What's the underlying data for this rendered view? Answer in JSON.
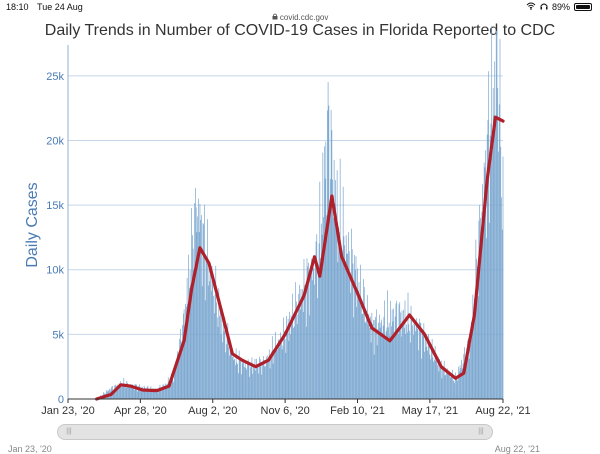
{
  "status_bar": {
    "time": "18:10",
    "date": "Tue 24 Aug",
    "battery": "89%",
    "battery_level": 0.89
  },
  "browser": {
    "url": "covid.cdc.gov"
  },
  "chart_data": {
    "type": "bar",
    "title": "Daily Trends in Number of COVID-19 Cases in Florida Reported to CDC",
    "ylabel": "Daily Cases",
    "xlabel": "",
    "x_range": [
      "2020-01-23",
      "2021-08-22"
    ],
    "ylim": [
      0,
      27000
    ],
    "y_ticks": [
      0,
      5000,
      10000,
      15000,
      20000,
      25000
    ],
    "y_tick_labels": [
      "0",
      "5k",
      "10k",
      "15k",
      "20k",
      "25k"
    ],
    "x_ticks": [
      "2020-01-23",
      "2020-04-28",
      "2020-08-02",
      "2020-11-06",
      "2021-02-10",
      "2021-05-17",
      "2021-08-22"
    ],
    "x_tick_labels": [
      "Jan 23, '20",
      "Apr 28, '20",
      "Aug 2, '20",
      "Nov 6, '20",
      "Feb 10, '21",
      "May 17, '21",
      "Aug 22, '21"
    ],
    "grid": true,
    "series": [
      {
        "type": "bar",
        "color": "#7aa6cf",
        "values_approx": [
          [
            "2020-03-01",
            0
          ],
          [
            "2020-03-20",
            800
          ],
          [
            "2020-04-05",
            1200
          ],
          [
            "2020-04-28",
            900
          ],
          [
            "2020-05-20",
            700
          ],
          [
            "2020-06-10",
            1500
          ],
          [
            "2020-06-25",
            6000
          ],
          [
            "2020-07-12",
            15000
          ],
          [
            "2020-07-25",
            11000
          ],
          [
            "2020-08-15",
            5500
          ],
          [
            "2020-09-01",
            3000
          ],
          [
            "2020-09-20",
            2500
          ],
          [
            "2020-10-10",
            2800
          ],
          [
            "2020-11-06",
            5000
          ],
          [
            "2020-12-01",
            8500
          ],
          [
            "2020-12-20",
            11000
          ],
          [
            "2021-01-02",
            21000
          ],
          [
            "2021-01-15",
            14000
          ],
          [
            "2021-02-10",
            9000
          ],
          [
            "2021-03-01",
            5500
          ],
          [
            "2021-04-05",
            6500
          ],
          [
            "2021-05-01",
            5500
          ],
          [
            "2021-06-01",
            2500
          ],
          [
            "2021-06-20",
            1500
          ],
          [
            "2021-07-10",
            4500
          ],
          [
            "2021-07-25",
            15000
          ],
          [
            "2021-08-10",
            24000
          ],
          [
            "2021-08-15",
            26000
          ],
          [
            "2021-08-22",
            15000
          ]
        ]
      },
      {
        "type": "line",
        "color": "#b0202a",
        "points": [
          [
            "2020-03-01",
            0
          ],
          [
            "2020-03-20",
            350
          ],
          [
            "2020-04-02",
            1100
          ],
          [
            "2020-04-15",
            1000
          ],
          [
            "2020-05-01",
            700
          ],
          [
            "2020-05-20",
            650
          ],
          [
            "2020-06-05",
            1000
          ],
          [
            "2020-06-25",
            4500
          ],
          [
            "2020-07-05",
            8500
          ],
          [
            "2020-07-16",
            11700
          ],
          [
            "2020-07-28",
            10500
          ],
          [
            "2020-08-15",
            6500
          ],
          [
            "2020-08-28",
            3500
          ],
          [
            "2020-09-10",
            3000
          ],
          [
            "2020-09-28",
            2500
          ],
          [
            "2020-10-15",
            3000
          ],
          [
            "2020-11-06",
            5000
          ],
          [
            "2020-12-01",
            8000
          ],
          [
            "2020-12-15",
            11000
          ],
          [
            "2020-12-22",
            9500
          ],
          [
            "2021-01-07",
            15700
          ],
          [
            "2021-01-20",
            11000
          ],
          [
            "2021-02-10",
            8200
          ],
          [
            "2021-03-01",
            5500
          ],
          [
            "2021-03-25",
            4500
          ],
          [
            "2021-04-20",
            6500
          ],
          [
            "2021-05-10",
            5000
          ],
          [
            "2021-06-01",
            2500
          ],
          [
            "2021-06-20",
            1600
          ],
          [
            "2021-07-01",
            2000
          ],
          [
            "2021-07-15",
            6500
          ],
          [
            "2021-08-01",
            17000
          ],
          [
            "2021-08-12",
            21800
          ],
          [
            "2021-08-22",
            21500
          ]
        ]
      }
    ]
  },
  "navigator": {
    "start_label": "Jan 23, '20",
    "end_label": "Aug 22, '21"
  }
}
